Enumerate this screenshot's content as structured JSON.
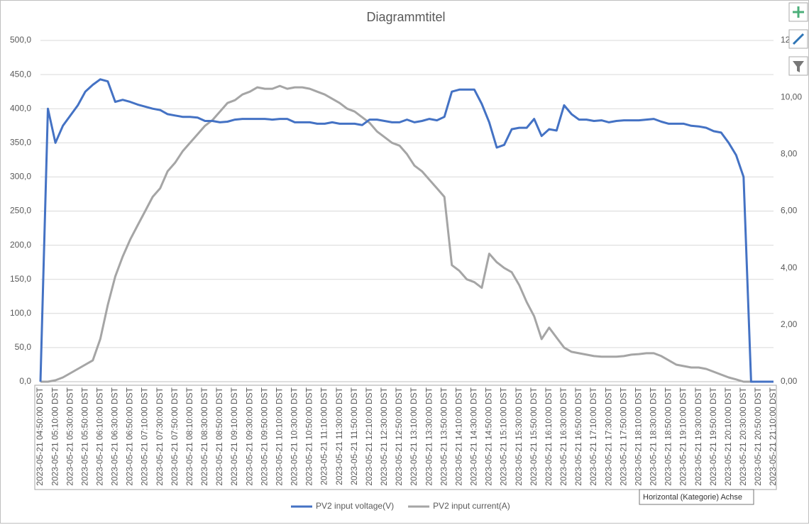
{
  "chart_data": {
    "type": "line",
    "title": "Diagrammtitel",
    "categories": [
      "2023-05-21 04:50:00 DST",
      null,
      "2023-05-21 05:10:00 DST",
      null,
      "2023-05-21 05:30:00 DST",
      null,
      "2023-05-21 05:50:00 DST",
      null,
      "2023-05-21 06:10:00 DST",
      null,
      "2023-05-21 06:30:00 DST",
      null,
      "2023-05-21 06:50:00 DST",
      null,
      "2023-05-21 07:10:00 DST",
      null,
      "2023-05-21 07:30:00 DST",
      null,
      "2023-05-21 07:50:00 DST",
      null,
      "2023-05-21 08:10:00 DST",
      null,
      "2023-05-21 08:30:00 DST",
      null,
      "2023-05-21 08:50:00 DST",
      null,
      "2023-05-21 09:10:00 DST",
      null,
      "2023-05-21 09:30:00 DST",
      null,
      "2023-05-21 09:50:00 DST",
      null,
      "2023-05-21 10:10:00 DST",
      null,
      "2023-05-21 10:30:00 DST",
      null,
      "2023-05-21 10:50:00 DST",
      null,
      "2023-05-21 11:10:00 DST",
      null,
      "2023-05-21 11:30:00 DST",
      null,
      "2023-05-21 11:50:00 DST",
      null,
      "2023-05-21 12:10:00 DST",
      null,
      "2023-05-21 12:30:00 DST",
      null,
      "2023-05-21 12:50:00 DST",
      null,
      "2023-05-21 13:10:00 DST",
      null,
      "2023-05-21 13:30:00 DST",
      null,
      "2023-05-21 13:50:00 DST",
      null,
      "2023-05-21 14:10:00 DST",
      null,
      "2023-05-21 14:30:00 DST",
      null,
      "2023-05-21 14:50:00 DST",
      null,
      "2023-05-21 15:10:00 DST",
      null,
      "2023-05-21 15:30:00 DST",
      null,
      "2023-05-21 15:50:00 DST",
      null,
      "2023-05-21 16:10:00 DST",
      null,
      "2023-05-21 16:30:00 DST",
      null,
      "2023-05-21 16:50:00 DST",
      null,
      "2023-05-21 17:10:00 DST",
      null,
      "2023-05-21 17:30:00 DST",
      null,
      "2023-05-21 17:50:00 DST",
      null,
      "2023-05-21 18:10:00 DST",
      null,
      "2023-05-21 18:30:00 DST",
      null,
      "2023-05-21 18:50:00 DST",
      null,
      "2023-05-21 19:10:00 DST",
      null,
      "2023-05-21 19:30:00 DST",
      null,
      "2023-05-21 19:50:00 DST",
      null,
      "2023-05-21 20:10:00 DST",
      null,
      "2023-05-21 20:30:00 DST",
      null,
      "2023-05-21 20:50:00 DST",
      null,
      "2023-05-21 21:10:00 DST"
    ],
    "series": [
      {
        "name": "PV2 input voltage(V)",
        "color": "#4472c4",
        "values": [
          0,
          400,
          350,
          375,
          390,
          405,
          425,
          435,
          443,
          440,
          410,
          413,
          410,
          406,
          403,
          400,
          398,
          392,
          390,
          388,
          388,
          387,
          382,
          382,
          380,
          381,
          384,
          385,
          385,
          385,
          385,
          384,
          385,
          385,
          380,
          380,
          380,
          378,
          378,
          380,
          378,
          378,
          378,
          376,
          384,
          384,
          382,
          380,
          380,
          384,
          380,
          382,
          385,
          383,
          388,
          425,
          428,
          428,
          428,
          407,
          380,
          343,
          347,
          370,
          372,
          372,
          385,
          360,
          370,
          368,
          405,
          392,
          384,
          384,
          382,
          383,
          380,
          382,
          383,
          383,
          383,
          384,
          385,
          381,
          378,
          378,
          378,
          375,
          374,
          372,
          367,
          365,
          350,
          332,
          300,
          0,
          0,
          0,
          0
        ]
      },
      {
        "name": "PV2 input current(A)",
        "color": "#a5a5a5",
        "axis": "y2",
        "values": [
          0,
          0,
          0.05,
          0.15,
          0.3,
          0.45,
          0.6,
          0.75,
          1.5,
          2.7,
          3.7,
          4.4,
          5.0,
          5.5,
          6.0,
          6.5,
          6.8,
          7.4,
          7.7,
          8.1,
          8.4,
          8.7,
          9.0,
          9.2,
          9.5,
          9.8,
          9.9,
          10.1,
          10.2,
          10.35,
          10.3,
          10.3,
          10.4,
          10.3,
          10.35,
          10.35,
          10.3,
          10.2,
          10.1,
          9.95,
          9.8,
          9.6,
          9.5,
          9.3,
          9.1,
          8.8,
          8.6,
          8.4,
          8.3,
          8.0,
          7.6,
          7.4,
          7.1,
          6.8,
          6.5,
          4.1,
          3.9,
          3.6,
          3.5,
          3.3,
          4.5,
          4.2,
          4.0,
          3.85,
          3.4,
          2.8,
          2.3,
          1.5,
          1.9,
          1.55,
          1.2,
          1.05,
          1.0,
          0.95,
          0.9,
          0.88,
          0.88,
          0.88,
          0.9,
          0.95,
          0.97,
          1.0,
          1.0,
          0.9,
          0.75,
          0.6,
          0.55,
          0.5,
          0.5,
          0.45,
          0.35,
          0.25,
          0.15,
          0.08,
          0,
          0,
          0,
          0,
          0
        ]
      }
    ],
    "ylim": [
      0,
      500
    ],
    "yticks": [
      {
        "value": 0,
        "label": "0,0"
      },
      {
        "value": 50,
        "label": "50,0"
      },
      {
        "value": 100,
        "label": "100,0"
      },
      {
        "value": 150,
        "label": "150,0"
      },
      {
        "value": 200,
        "label": "200,0"
      },
      {
        "value": 250,
        "label": "250,0"
      },
      {
        "value": 300,
        "label": "300,0"
      },
      {
        "value": 350,
        "label": "350,0"
      },
      {
        "value": 400,
        "label": "400,0"
      },
      {
        "value": 450,
        "label": "450,0"
      },
      {
        "value": 500,
        "label": "500,0"
      }
    ],
    "y2lim": [
      0,
      12
    ],
    "y2ticks": [
      {
        "value": 0,
        "label": "0,00"
      },
      {
        "value": 2,
        "label": "2,00"
      },
      {
        "value": 4,
        "label": "4,00"
      },
      {
        "value": 6,
        "label": "6,00"
      },
      {
        "value": 8,
        "label": "8,00"
      },
      {
        "value": 10,
        "label": "10,00"
      },
      {
        "value": 12,
        "label": "12,00"
      }
    ],
    "grid": true,
    "legend": "bottom",
    "tooltip": "Horizontal (Kategorie) Achse"
  }
}
